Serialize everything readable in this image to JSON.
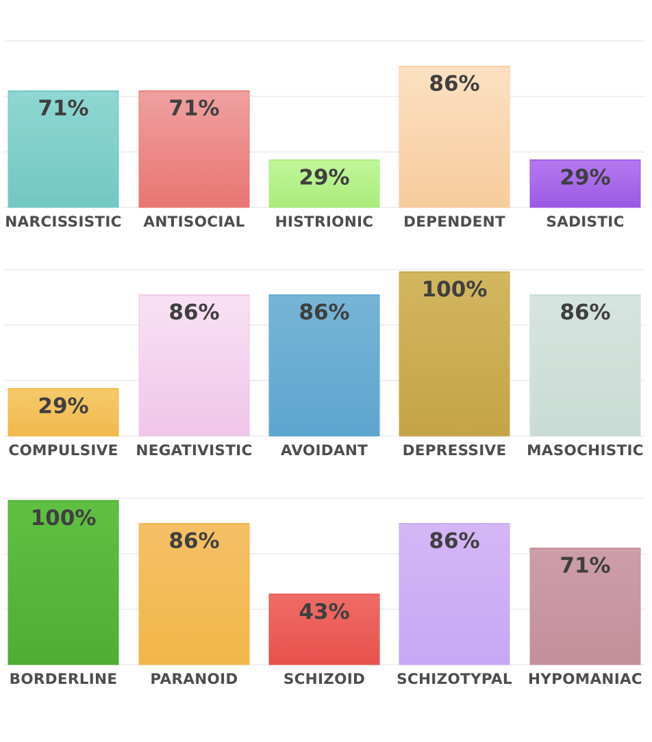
{
  "chart_data": [
    {
      "type": "bar",
      "categories": [
        "NARCISSISTIC",
        "ANTISOCIAL",
        "HISTRIONIC",
        "DEPENDENT",
        "SADISTIC"
      ],
      "values": [
        71,
        71,
        29,
        86,
        29
      ],
      "value_labels": [
        "71%",
        "71%",
        "29%",
        "86%",
        "29%"
      ],
      "colors": [
        [
          "#8fd7d2",
          "#72c7c3"
        ],
        [
          "#f0a1a1",
          "#e87572"
        ],
        [
          "#c2f69a",
          "#a9ec7b"
        ],
        [
          "#fbe1c2",
          "#f7cb9c"
        ],
        [
          "#b47af0",
          "#9b59e4"
        ]
      ],
      "ylim": [
        0,
        100
      ],
      "grid": true,
      "legend": "none"
    },
    {
      "type": "bar",
      "categories": [
        "COMPULSIVE",
        "NEGATIVISTIC",
        "AVOIDANT",
        "DEPRESSIVE",
        "MASOCHISTIC"
      ],
      "values": [
        29,
        86,
        86,
        100,
        86
      ],
      "value_labels": [
        "29%",
        "86%",
        "86%",
        "100%",
        "86%"
      ],
      "colors": [
        [
          "#f5ca6c",
          "#f1b84c"
        ],
        [
          "#f8e1f3",
          "#f0c5ea"
        ],
        [
          "#77b4d6",
          "#5da6cf"
        ],
        [
          "#d2b660",
          "#c4a446"
        ],
        [
          "#d6e4de",
          "#c8dcd4"
        ]
      ],
      "ylim": [
        0,
        100
      ],
      "grid": true,
      "legend": "none"
    },
    {
      "type": "bar",
      "categories": [
        "BORDERLINE",
        "PARANOID",
        "SCHIZOID",
        "SCHIZOTYPAL",
        "HYPOMANIAC"
      ],
      "values": [
        100,
        86,
        43,
        86,
        71
      ],
      "value_labels": [
        "100%",
        "86%",
        "43%",
        "86%",
        "71%"
      ],
      "colors": [
        [
          "#5fc043",
          "#4fad34"
        ],
        [
          "#f5c066",
          "#f1b749"
        ],
        [
          "#f06c66",
          "#e8514c"
        ],
        [
          "#d5b6f6",
          "#c6a8f4"
        ],
        [
          "#cc9ea9",
          "#c38f9b"
        ]
      ],
      "ylim": [
        0,
        100
      ],
      "grid": true,
      "legend": "none"
    }
  ]
}
